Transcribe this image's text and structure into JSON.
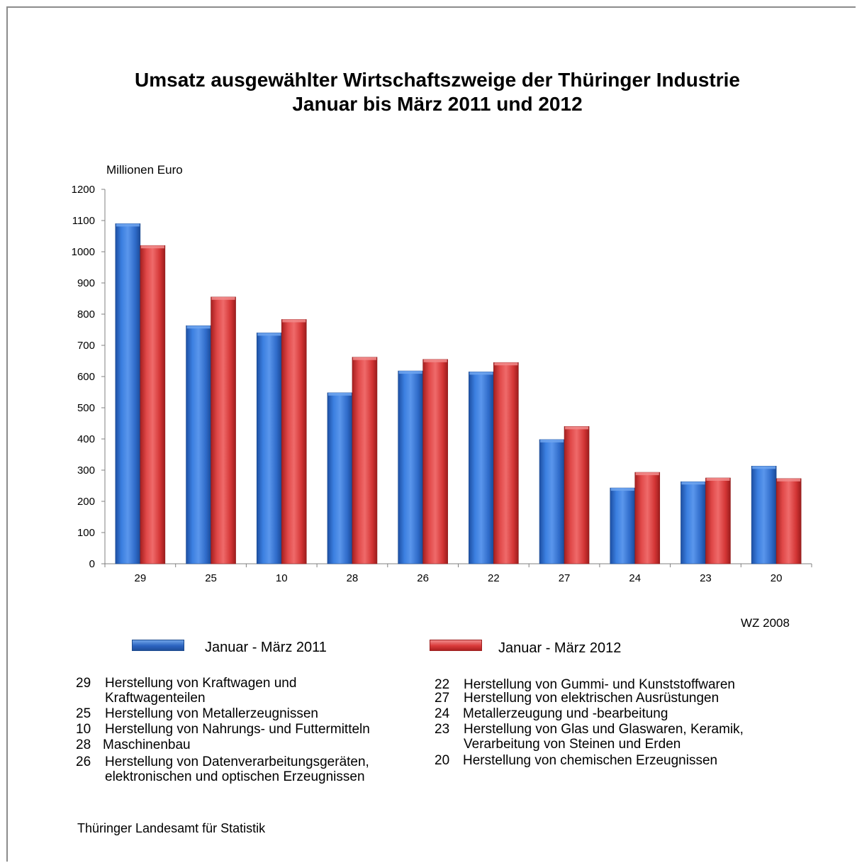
{
  "title_line1": "Umsatz ausgewählter Wirtschaftszweige der Thüringer Industrie",
  "title_line2": "Januar bis März 2011 und 2012",
  "colors": {
    "series_2011": "#2f6bc9",
    "series_2012": "#d93a3a",
    "frame": "#8c8c8c"
  },
  "chart_data": {
    "type": "bar",
    "title": "Umsatz ausgewählter Wirtschaftszweige der Thüringer Industrie Januar bis März 2011 und 2012",
    "ylabel": "Millionen Euro",
    "xlabel": "",
    "ylim": [
      0,
      1200
    ],
    "yticks": [
      0,
      100,
      200,
      300,
      400,
      500,
      600,
      700,
      800,
      900,
      1000,
      1100,
      1200
    ],
    "categories": [
      "29",
      "25",
      "10",
      "28",
      "26",
      "22",
      "27",
      "24",
      "23",
      "20"
    ],
    "series": [
      {
        "name": "Januar - März 2011",
        "values": [
          1090,
          763,
          740,
          548,
          618,
          615,
          398,
          243,
          263,
          313
        ]
      },
      {
        "name": "Januar - März  2012",
        "values": [
          1020,
          855,
          783,
          662,
          655,
          645,
          440,
          293,
          275,
          273
        ]
      }
    ],
    "grid": false,
    "legend_position": "bottom"
  },
  "wz_note": "WZ 2008",
  "legend": {
    "series_2011": "Januar - März 2011",
    "series_2012": "Januar - März  2012"
  },
  "wz_list_left": [
    {
      "code": "29",
      "desc": "Herstellung von Kraftwagen und\nKraftwagenteilen"
    },
    {
      "code": "25",
      "desc": "Herstellung von Metallerzeugnissen"
    },
    {
      "code": "10",
      "desc": "Herstellung von Nahrungs- und Futtermitteln"
    },
    {
      "code": "28",
      "desc": "Maschinenbau"
    },
    {
      "code": "26",
      "desc": "Herstellung von Datenverarbeitungsgeräten,\nelektronischen und optischen Erzeugnissen"
    }
  ],
  "wz_list_right": [
    {
      "code": "22",
      "desc": "Herstellung von Gummi- und  Kunststoffwaren"
    },
    {
      "code": "27",
      "desc": "Herstellung von elektrischen Ausrüstungen"
    },
    {
      "code": "24",
      "desc": "Metallerzeugung und -bearbeitung"
    },
    {
      "code": "23",
      "desc": "Herstellung von Glas und Glaswaren, Keramik,\nVerarbeitung von Steinen und Erden"
    },
    {
      "code": "20",
      "desc": "Herstellung von chemischen Erzeugnissen"
    }
  ],
  "source": "Thüringer Landesamt für Statistik"
}
